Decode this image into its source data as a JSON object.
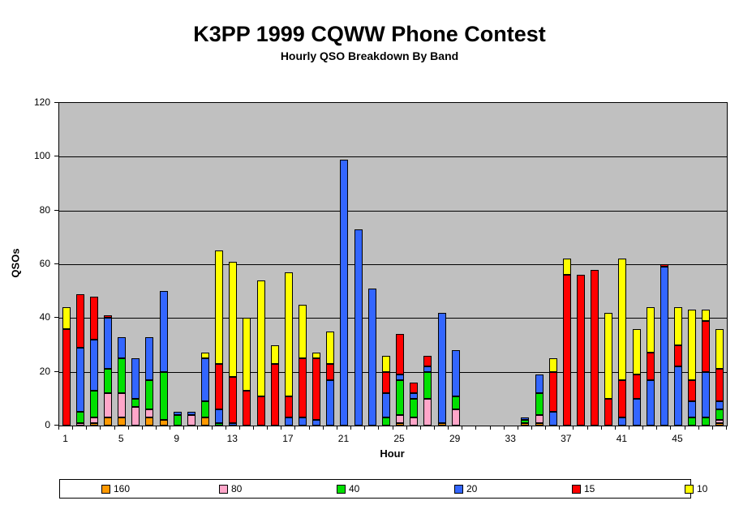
{
  "title": "K3PP 1999 CQWW Phone Contest",
  "subtitle": "Hourly QSO Breakdown By Band",
  "chart_data": {
    "type": "bar",
    "stacked": true,
    "title": "K3PP 1999 CQWW Phone Contest",
    "subtitle": "Hourly QSO Breakdown By Band",
    "xlabel": "Hour",
    "ylabel": "QSOs",
    "ylim": [
      0,
      120
    ],
    "ytick_interval": 20,
    "yticks": [
      0,
      20,
      40,
      60,
      80,
      100,
      120
    ],
    "xtick_labels": [
      1,
      5,
      9,
      13,
      17,
      21,
      25,
      29,
      33,
      37,
      41,
      45
    ],
    "grid": true,
    "plot_background": "#C0C0C0",
    "legend_position": "bottom",
    "categories": [
      1,
      2,
      3,
      4,
      5,
      6,
      7,
      8,
      9,
      10,
      11,
      12,
      13,
      14,
      15,
      16,
      17,
      18,
      19,
      20,
      21,
      22,
      23,
      24,
      25,
      26,
      27,
      28,
      29,
      30,
      31,
      32,
      33,
      34,
      35,
      36,
      37,
      38,
      39,
      40,
      41,
      42,
      43,
      44,
      45,
      46,
      47,
      48
    ],
    "series": [
      {
        "name": "160",
        "color": "#FF9900",
        "values": [
          0,
          0,
          1,
          3,
          3,
          0,
          3,
          2,
          0,
          0,
          3,
          0,
          0,
          0,
          0,
          0,
          0,
          0,
          0,
          0,
          0,
          0,
          0,
          0,
          1,
          0,
          0,
          1,
          0,
          0,
          0,
          0,
          0,
          1,
          1,
          0,
          0,
          0,
          0,
          0,
          0,
          0,
          0,
          0,
          0,
          0,
          0,
          1
        ]
      },
      {
        "name": "80",
        "color": "#FFA6C9",
        "values": [
          0,
          1,
          2,
          9,
          9,
          7,
          3,
          0,
          0,
          4,
          0,
          0,
          0,
          0,
          0,
          0,
          0,
          0,
          0,
          0,
          0,
          0,
          0,
          0,
          3,
          3,
          10,
          0,
          6,
          0,
          0,
          0,
          0,
          0,
          3,
          0,
          0,
          0,
          0,
          0,
          0,
          0,
          0,
          0,
          0,
          0,
          0,
          1
        ]
      },
      {
        "name": "40",
        "color": "#00E000",
        "values": [
          0,
          4,
          10,
          9,
          13,
          3,
          11,
          18,
          4,
          0,
          6,
          1,
          0,
          0,
          0,
          0,
          0,
          0,
          0,
          0,
          0,
          0,
          0,
          3,
          13,
          7,
          10,
          0,
          5,
          0,
          0,
          0,
          0,
          1,
          8,
          0,
          0,
          0,
          0,
          0,
          0,
          0,
          0,
          0,
          0,
          3,
          3,
          4
        ]
      },
      {
        "name": "20",
        "color": "#3366FF",
        "values": [
          0,
          24,
          19,
          19,
          8,
          15,
          16,
          30,
          1,
          1,
          16,
          5,
          1,
          0,
          0,
          0,
          3,
          3,
          2,
          17,
          99,
          73,
          51,
          9,
          2,
          2,
          2,
          41,
          17,
          0,
          0,
          0,
          0,
          1,
          7,
          5,
          0,
          0,
          0,
          0,
          3,
          10,
          17,
          59,
          22,
          6,
          17,
          3
        ]
      },
      {
        "name": "15",
        "color": "#FF0000",
        "values": [
          36,
          20,
          16,
          1,
          0,
          0,
          0,
          0,
          0,
          0,
          0,
          17,
          17,
          13,
          11,
          23,
          8,
          22,
          23,
          6,
          0,
          0,
          0,
          8,
          15,
          4,
          4,
          0,
          0,
          0,
          0,
          0,
          0,
          0,
          0,
          15,
          56,
          56,
          58,
          10,
          14,
          9,
          10,
          1,
          8,
          8,
          19,
          12
        ]
      },
      {
        "name": "10",
        "color": "#FFFF00",
        "values": [
          8,
          0,
          0,
          0,
          0,
          0,
          0,
          0,
          0,
          0,
          2,
          42,
          43,
          27,
          43,
          7,
          46,
          20,
          2,
          12,
          0,
          0,
          0,
          6,
          0,
          0,
          0,
          0,
          0,
          0,
          0,
          0,
          0,
          0,
          0,
          5,
          6,
          0,
          0,
          32,
          45,
          17,
          17,
          0,
          14,
          26,
          4,
          15
        ]
      }
    ]
  }
}
